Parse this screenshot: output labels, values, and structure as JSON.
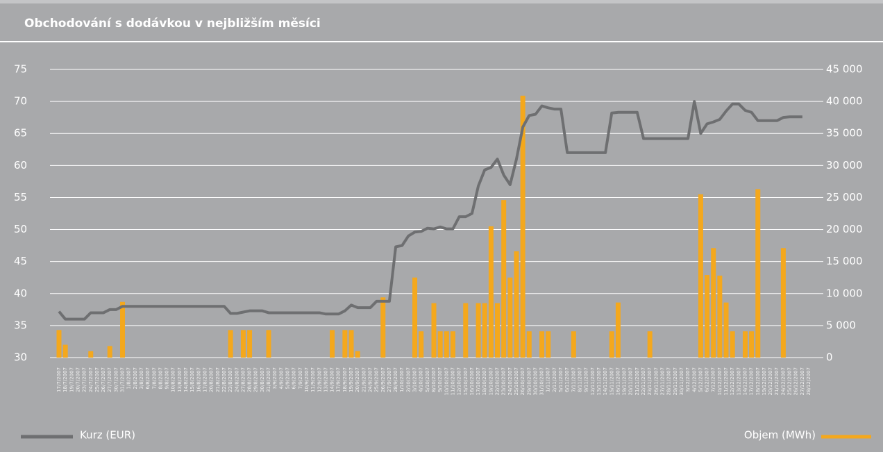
{
  "chart_data": {
    "type": "combo",
    "title": "Obchodování s dodávkou v nejbližším měsíci",
    "categories": [
      "17/7/2007",
      "18/7/2007",
      "19/7/2007",
      "20/7/2007",
      "23/7/2007",
      "24/7/2007",
      "25/7/2007",
      "26/7/2007",
      "27/7/2007",
      "30/7/2007",
      "31/7/2007",
      "1/8/2007",
      "2/8/2007",
      "3/8/2007",
      "6/8/2007",
      "7/8/2007",
      "8/8/2007",
      "9/8/2007",
      "10/8/2007",
      "13/8/2007",
      "14/8/2007",
      "15/8/2007",
      "16/8/2007",
      "17/8/2007",
      "20/8/2007",
      "21/8/2007",
      "22/8/2007",
      "23/8/2007",
      "24/8/2007",
      "27/8/2007",
      "28/8/2007",
      "29/8/2007",
      "30/8/2007",
      "31/8/2007",
      "3/9/2007",
      "4/9/2007",
      "5/9/2007",
      "6/9/2007",
      "7/9/2007",
      "10/9/2007",
      "11/9/2007",
      "12/9/2007",
      "13/9/2007",
      "14/9/2007",
      "17/9/2007",
      "18/9/2007",
      "19/9/2007",
      "20/9/2007",
      "21/9/2007",
      "24/9/2007",
      "25/9/2007",
      "26/9/2007",
      "27/9/2007",
      "28/9/2007",
      "1/10/2007",
      "2/10/2007",
      "3/10/2007",
      "4/10/2007",
      "5/10/2007",
      "8/10/2007",
      "9/10/2007",
      "10/10/2007",
      "11/10/2007",
      "12/10/2007",
      "15/10/2007",
      "16/10/2007",
      "17/10/2007",
      "18/10/2007",
      "19/10/2007",
      "22/10/2007",
      "23/10/2007",
      "24/10/2007",
      "25/10/2007",
      "26/10/2007",
      "29/10/2007",
      "30/10/2007",
      "31/10/2007",
      "1/11/2007",
      "2/11/2007",
      "5/11/2007",
      "6/11/2007",
      "7/11/2007",
      "8/11/2007",
      "9/11/2007",
      "12/11/2007",
      "13/11/2007",
      "14/11/2007",
      "15/11/2007",
      "16/11/2007",
      "19/11/2007",
      "20/11/2007",
      "21/11/2007",
      "22/11/2007",
      "23/11/2007",
      "26/11/2007",
      "27/11/2007",
      "28/11/2007",
      "29/11/2007",
      "30/11/2007",
      "3/12/2007",
      "4/12/2007",
      "5/12/2007",
      "6/12/2007",
      "7/12/2007",
      "10/12/2007",
      "11/12/2007",
      "12/12/2007",
      "13/12/2007",
      "14/12/2007",
      "17/12/2007",
      "18/12/2007",
      "19/12/2007",
      "20/12/2007",
      "21/12/2007",
      "24/12/2007",
      "25/12/2007",
      "26/12/2007",
      "27/12/2007",
      "28/12/2007"
    ],
    "series": [
      {
        "name": "Kurz (EUR)",
        "type": "line",
        "color": "#6e6f71",
        "values": [
          37.2,
          36,
          36,
          36,
          36,
          37,
          37,
          37,
          37.5,
          37.5,
          38,
          38,
          38,
          38,
          38,
          38,
          38,
          38,
          38,
          38,
          38,
          38,
          38,
          38,
          38,
          38,
          38,
          36.9,
          36.9,
          37.1,
          37.3,
          37.3,
          37.3,
          37,
          37,
          37,
          37,
          37,
          37,
          37,
          37,
          37,
          36.8,
          36.8,
          36.8,
          37.3,
          38.2,
          37.8,
          37.8,
          37.8,
          38.8,
          38.8,
          38.8,
          47.3,
          47.5,
          49,
          49.6,
          49.7,
          50.2,
          50.1,
          50.4,
          50.1,
          50.1,
          52,
          52,
          52.5,
          56.8,
          59.3,
          59.7,
          61,
          58.5,
          57,
          61,
          66,
          67.8,
          68,
          69.3,
          69,
          68.8,
          68.8,
          62,
          62,
          62,
          62,
          62,
          62,
          62,
          68.2,
          68.3,
          68.3,
          68.3,
          68.3,
          64.2,
          64.2,
          64.2,
          64.2,
          64.2,
          64.2,
          64.2,
          64.2,
          70,
          65,
          66.5,
          66.8,
          67.2,
          68.5,
          69.6,
          69.6,
          68.6,
          68.3,
          67,
          67,
          67,
          67,
          67.5,
          67.6,
          67.6,
          67.6,
          null
        ]
      },
      {
        "name": "Objem (MWh)",
        "type": "bar",
        "axis": "y2",
        "color": "#f4a81d",
        "values": [
          4300,
          2000,
          null,
          null,
          null,
          1000,
          null,
          null,
          1800,
          null,
          8700,
          null,
          null,
          null,
          null,
          null,
          null,
          null,
          null,
          null,
          null,
          null,
          null,
          null,
          null,
          null,
          null,
          4300,
          null,
          4300,
          4300,
          null,
          null,
          4300,
          null,
          null,
          null,
          null,
          null,
          null,
          null,
          null,
          null,
          4300,
          null,
          4300,
          4300,
          1000,
          null,
          null,
          null,
          9400,
          null,
          null,
          null,
          null,
          12500,
          4100,
          null,
          8500,
          4100,
          4100,
          4100,
          null,
          8500,
          null,
          8500,
          8500,
          20500,
          8500,
          24600,
          12500,
          16600,
          40900,
          4100,
          null,
          4100,
          4100,
          null,
          null,
          null,
          4100,
          null,
          null,
          null,
          null,
          null,
          4100,
          8600,
          null,
          null,
          null,
          null,
          4100,
          null,
          null,
          null,
          null,
          null,
          null,
          null,
          25500,
          12900,
          17100,
          12800,
          8600,
          4100,
          null,
          4100,
          4100,
          26300,
          null,
          null,
          null,
          17100,
          null,
          null,
          null,
          null
        ]
      }
    ],
    "ylim": [
      30,
      75
    ],
    "yticks": [
      30,
      35,
      40,
      45,
      50,
      55,
      60,
      65,
      70,
      75
    ],
    "y2lim": [
      0,
      45000
    ],
    "y2ticks": [
      0,
      {
        "value": 5000,
        "label": "5 000"
      },
      {
        "value": 10000,
        "label": "10 000"
      },
      {
        "value": 15000,
        "label": "15 000"
      },
      {
        "value": 20000,
        "label": "20 000"
      },
      {
        "value": 25000,
        "label": "25 000"
      },
      {
        "value": 30000,
        "label": "30 000"
      },
      {
        "value": 35000,
        "label": "35 000"
      },
      {
        "value": 40000,
        "label": "40 000"
      },
      {
        "value": 45000,
        "label": "45 000"
      }
    ],
    "grid": true
  }
}
